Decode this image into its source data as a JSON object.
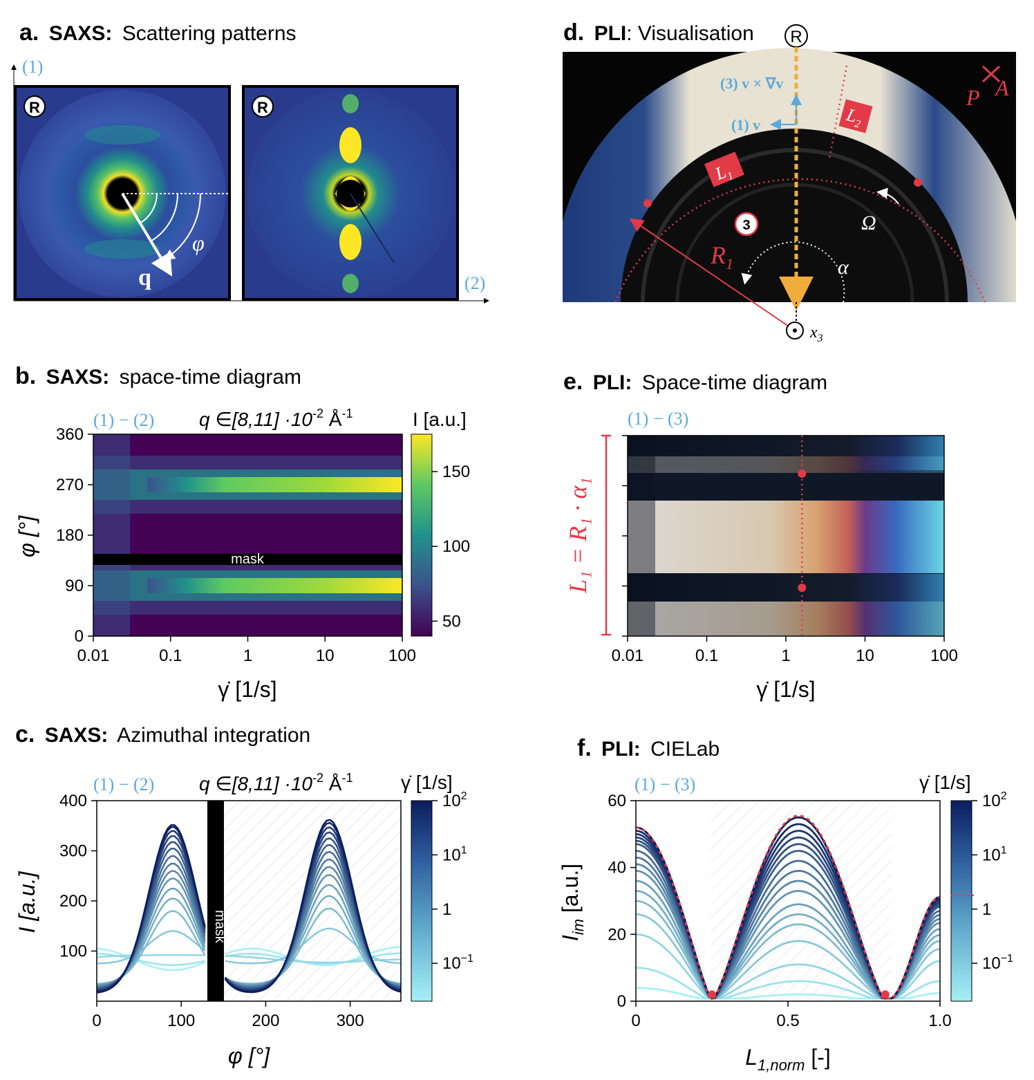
{
  "colors": {
    "viridis_low": "#440154",
    "viridis_mid": "#21918c",
    "viridis_high": "#fde725",
    "blues_low": "#a6f0f6",
    "blues_high": "#0b1d5e",
    "pli_red": "#e23a47",
    "axis_blue": "#5aa9dc",
    "pli_orange": "#f0ad3c"
  },
  "panel_a": {
    "letter": "a.",
    "prefix": "SAXS:",
    "title": "Scattering patterns",
    "axis1": "(1)",
    "axis2": "(2)",
    "rheo_symbol": "R",
    "q_label": "q",
    "phi_label": "φ"
  },
  "panel_b": {
    "letter": "b.",
    "prefix": "SAXS:",
    "title": "space-time diagram",
    "direction": "(1) − (2)",
    "qrange": "q ∈[8,11] ·10",
    "qexp": "-2",
    "qunit": " Å",
    "qunit_exp": "-1",
    "colorbar_label": "I [a.u.]",
    "mask_label": "mask",
    "ylabel": "φ [°]",
    "xlabel": "γ̇ [1/s]"
  },
  "panel_c": {
    "letter": "c.",
    "prefix": "SAXS:",
    "title": "Azimuthal integration",
    "direction": "(1) − (2)",
    "qrange": "q ∈[8,11] ·10",
    "qexp": "-2",
    "qunit": " Å",
    "qunit_exp": "-1",
    "colorbar_label": "γ̇ [1/s]",
    "mask_label": "mask",
    "ylabel": "I [a.u.]",
    "xlabel": "φ [°]"
  },
  "panel_d": {
    "letter": "d.",
    "prefix": "PLI",
    "title": ": Visualisation",
    "rheo_symbol": "R",
    "eq1": "(3) v × ∇v",
    "eq2": "(1) v",
    "L1": "L",
    "L1_sub": "1",
    "L2": "L",
    "L2_sub": "2",
    "P": "P",
    "A": "A",
    "omega": "Ω",
    "R1": "R",
    "R1_sub": "1",
    "alpha": "α",
    "x3": "x",
    "x3_sub": "3",
    "marker3": "3"
  },
  "panel_e": {
    "letter": "e.",
    "prefix": "PLI:",
    "title": "Space-time diagram",
    "direction": "(1) − (3)",
    "side_label": "L₁ = R₁ · α₁",
    "xlabel": "γ̇ [1/s]"
  },
  "panel_f": {
    "letter": "f.",
    "prefix": "PLI:",
    "title": "CIELab",
    "direction": "(1) − (3)",
    "colorbar_label": "γ̇ [1/s]",
    "ylabel": "I",
    "ylabel_sub": "im",
    "ylabel_unit": " [a.u.]",
    "xlabel": "L",
    "xlabel_sub": "1,norm",
    "xlabel_unit": " [-]"
  },
  "chart_data": [
    {
      "id": "b",
      "type": "heatmap",
      "x_scale": "log",
      "xlim": [
        0.01,
        100
      ],
      "xticks": [
        "0.01",
        "0.1",
        "1",
        "10",
        "100"
      ],
      "ylim": [
        0,
        360
      ],
      "yticks": [
        "0",
        "90",
        "180",
        "270",
        "360"
      ],
      "colorbar": {
        "label": "I [a.u.]",
        "range": [
          40,
          175
        ],
        "ticks": [
          "50",
          "100",
          "150"
        ]
      },
      "bands": [
        {
          "phi": 90,
          "peak": 165
        },
        {
          "phi": 270,
          "peak": 175
        }
      ],
      "mask": {
        "phi_range": [
          130,
          150
        ],
        "label": "mask"
      }
    },
    {
      "id": "c",
      "type": "line",
      "xlim": [
        0,
        360
      ],
      "xticks": [
        "0",
        "100",
        "200",
        "300"
      ],
      "ylim": [
        0,
        400
      ],
      "yticks": [
        "100",
        "200",
        "300",
        "400"
      ],
      "colorbar": {
        "label": "γ̇ [1/s]",
        "scale": "log",
        "range": [
          0.02,
          100
        ],
        "ticks": [
          "10^-1",
          "1",
          "10^1",
          "10^2"
        ]
      },
      "mask": {
        "phi_range": [
          130,
          150
        ],
        "label": "mask"
      },
      "peaks": [
        90,
        275
      ],
      "curves_peak_heights": [
        70,
        80,
        110,
        140,
        180,
        205,
        225,
        245,
        260,
        275,
        290,
        305,
        318,
        330,
        340,
        348,
        352
      ],
      "peak2_heights": [
        70,
        80,
        115,
        145,
        185,
        210,
        232,
        252,
        268,
        283,
        298,
        312,
        325,
        337,
        347,
        356,
        362
      ]
    },
    {
      "id": "e",
      "type": "heatmap",
      "x_scale": "log",
      "xlim": [
        0.01,
        100
      ],
      "xticks": [
        "0.01",
        "0.1",
        "1",
        "10",
        "100"
      ],
      "marker_x": 1.6
    },
    {
      "id": "f",
      "type": "line",
      "xlim": [
        0,
        1.0
      ],
      "xticks": [
        "0",
        "0.5",
        "1.0"
      ],
      "ylim": [
        0,
        60
      ],
      "yticks": [
        "0",
        "20",
        "40",
        "60"
      ],
      "colorbar": {
        "label": "γ̇ [1/s]",
        "scale": "log",
        "range": [
          0.02,
          100
        ],
        "ticks": [
          "10^-1",
          "1",
          "10^1",
          "10^2"
        ]
      },
      "minima": [
        0.25,
        0.82
      ],
      "center_peak_heights": [
        2,
        6,
        11,
        18,
        23,
        26,
        29,
        33,
        36,
        39,
        42,
        45,
        47,
        49,
        51,
        53,
        55
      ],
      "left_heights": [
        4,
        10,
        20,
        26,
        30,
        33,
        36,
        39,
        41,
        43,
        45,
        47,
        48,
        49,
        50,
        51,
        52
      ]
    }
  ]
}
